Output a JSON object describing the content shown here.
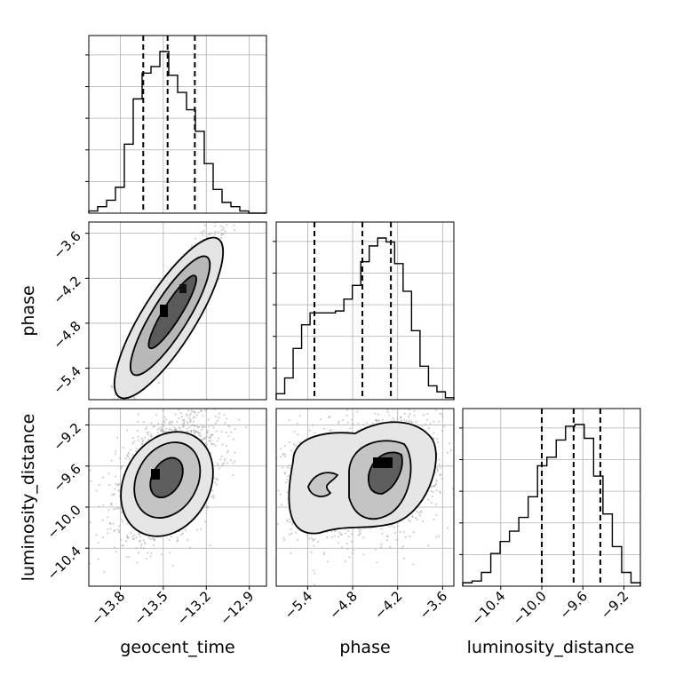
{
  "chart_data": {
    "type": "corner",
    "parameters": [
      {
        "name": "geocent_time",
        "range": [
          -14.02,
          -12.78
        ],
        "ticks": [
          -13.8,
          -13.5,
          -13.2,
          -12.9
        ],
        "tick_labels": [
          "−13.8",
          "−13.5",
          "−13.2",
          "−12.9"
        ],
        "quantiles": [
          -13.64,
          -13.47,
          -13.28
        ]
      },
      {
        "name": "phase",
        "range": [
          -5.82,
          -3.45
        ],
        "ticks": [
          -5.4,
          -4.8,
          -4.2,
          -3.6
        ],
        "tick_labels": [
          "−5.4",
          "−4.8",
          "−4.2",
          "−3.6"
        ],
        "quantiles": [
          -5.31,
          -4.67,
          -4.29
        ]
      },
      {
        "name": "luminosity_distance",
        "range": [
          -10.77,
          -9.04
        ],
        "ticks": [
          -10.4,
          -10.0,
          -9.6,
          -9.2
        ],
        "tick_labels": [
          "−10.4",
          "−10.0",
          "−9.6",
          "−9.2"
        ],
        "quantiles": [
          -10.0,
          -9.69,
          -9.43
        ]
      }
    ],
    "histograms": [
      {
        "param": "geocent_time",
        "counts": [
          1,
          3,
          6,
          12,
          32,
          53,
          65,
          68,
          75,
          64,
          56,
          48,
          38,
          23,
          11,
          5,
          3,
          1,
          0,
          0
        ]
      },
      {
        "param": "phase",
        "counts": [
          3,
          11,
          26,
          38,
          44,
          44,
          44,
          45,
          51,
          58,
          70,
          78,
          82,
          80,
          69,
          55,
          35,
          17,
          7,
          4,
          1
        ]
      },
      {
        "param": "luminosity_distance",
        "counts": [
          2,
          3,
          8,
          19,
          26,
          32,
          40,
          52,
          70,
          75,
          85,
          93,
          94,
          86,
          64,
          42,
          23,
          8,
          2
        ]
      }
    ],
    "histogram_ylim": [
      0,
      80
    ],
    "contour_levels": 3,
    "grid": true
  },
  "panels": {
    "time_phase": "geocent_time vs phase",
    "time_distance": "geocent_time vs luminosity_distance",
    "phase_distance": "phase vs luminosity_distance"
  }
}
